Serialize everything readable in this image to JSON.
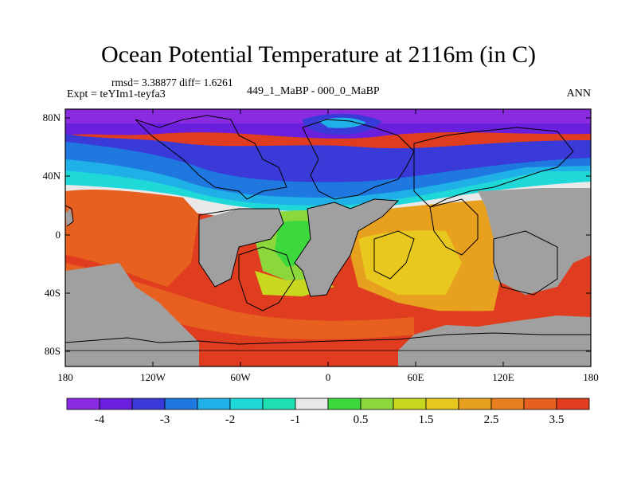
{
  "figure": {
    "title": "Ocean Potential Temperature at 2116m (in C)",
    "stats": "rmsd= 3.38877 diff= 1.6261",
    "experiment": "Expt = teYIm1-teyfa3",
    "difference": "449_1_MaBP - 000_0_MaBP",
    "season": "ANN"
  },
  "axes": {
    "lat_ticks": [
      "80N",
      "40N",
      "0",
      "40S",
      "80S"
    ],
    "lon_ticks": [
      "180",
      "120W",
      "60W",
      "0",
      "60E",
      "120E",
      "180"
    ]
  },
  "colorbar": {
    "colors": [
      "#8a2be2",
      "#6a1fdc",
      "#3a3ad8",
      "#1f78e0",
      "#1fb0e8",
      "#1fd8d8",
      "#1fe0b0",
      "#e8e8e8",
      "#3cd83c",
      "#8cd83c",
      "#c8d81f",
      "#e8c81f",
      "#e8a01f",
      "#e87f1f",
      "#e8601f",
      "#e03c1f"
    ],
    "labels": [
      "-4",
      "-3",
      "-2",
      "-1",
      "0.5",
      "1.5",
      "2.5",
      "3.5"
    ]
  },
  "map_colors": {
    "land": "#a0a0a0",
    "outline": "#000000"
  }
}
